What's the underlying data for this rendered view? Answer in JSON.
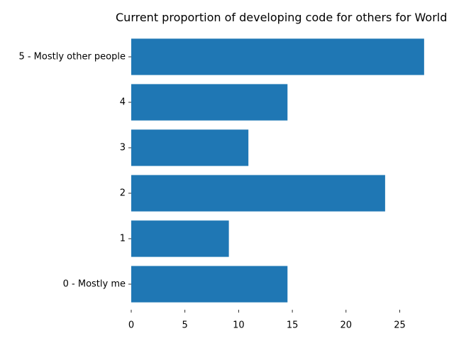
{
  "chart_data": {
    "type": "bar",
    "orientation": "horizontal",
    "title": "Current proportion of developing code for others for World",
    "xlabel": "",
    "ylabel": "",
    "categories": [
      "0 - Mostly me",
      "1",
      "2",
      "3",
      "4",
      "5 - Mostly other people"
    ],
    "values": [
      14.55,
      9.09,
      23.64,
      10.91,
      14.55,
      27.27
    ],
    "xlim": [
      0,
      28.6
    ],
    "xticks": [
      "0",
      "5",
      "10",
      "15",
      "20",
      "25"
    ],
    "grid": false,
    "legend": "none",
    "bar_color": "#1f77b4"
  }
}
